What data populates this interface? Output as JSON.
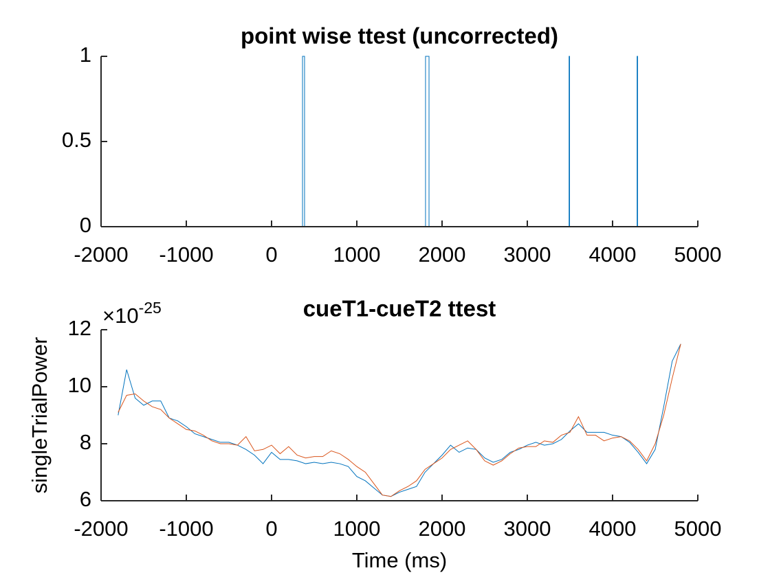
{
  "chart_data": [
    {
      "type": "line",
      "title": "point wise ttest (uncorrected)",
      "x": [
        -1800,
        363,
        363,
        387,
        387,
        1806,
        1806,
        1847,
        1847,
        3490,
        3490,
        3496,
        3496,
        4288,
        4288,
        4294,
        4294,
        4800
      ],
      "series": [
        {
          "color": "#0072BD",
          "values": [
            0,
            0,
            1,
            1,
            0,
            0,
            1,
            1,
            0,
            0,
            1,
            1,
            0,
            0,
            1,
            1,
            0,
            0
          ]
        }
      ],
      "xlim": [
        -2000,
        5000
      ],
      "xticks": [
        -2000,
        -1000,
        0,
        1000,
        2000,
        3000,
        4000,
        5000
      ],
      "ylim": [
        0,
        1
      ],
      "yticks": [
        0,
        0.5,
        1
      ]
    },
    {
      "type": "line",
      "title": "cueT1-cueT2 ttest",
      "ylabel": "singleTrialPower",
      "xlabel": "Time (ms)",
      "y_multiplier": {
        "base": "×10",
        "exponent": "-25"
      },
      "x": [
        -1800,
        -1700,
        -1600,
        -1500,
        -1400,
        -1300,
        -1200,
        -1100,
        -1000,
        -900,
        -800,
        -700,
        -600,
        -500,
        -400,
        -300,
        -200,
        -100,
        0,
        100,
        200,
        300,
        400,
        500,
        600,
        700,
        800,
        900,
        1000,
        1100,
        1200,
        1300,
        1400,
        1500,
        1600,
        1700,
        1800,
        1900,
        2000,
        2100,
        2200,
        2300,
        2400,
        2500,
        2600,
        2700,
        2800,
        2900,
        3000,
        3100,
        3200,
        3300,
        3400,
        3500,
        3600,
        3700,
        3800,
        3900,
        4000,
        4100,
        4200,
        4300,
        4400,
        4500,
        4600,
        4700,
        4800
      ],
      "series": [
        {
          "color": "#0072BD",
          "values": [
            9.0,
            10.6,
            9.6,
            9.35,
            9.5,
            9.5,
            8.9,
            8.8,
            8.6,
            8.35,
            8.25,
            8.15,
            8.05,
            8.05,
            7.95,
            7.8,
            7.6,
            7.3,
            7.7,
            7.45,
            7.45,
            7.4,
            7.3,
            7.35,
            7.3,
            7.35,
            7.3,
            7.2,
            6.85,
            6.7,
            6.45,
            6.2,
            6.15,
            6.3,
            6.4,
            6.5,
            7.0,
            7.3,
            7.6,
            7.95,
            7.7,
            7.85,
            7.8,
            7.5,
            7.35,
            7.45,
            7.7,
            7.8,
            7.95,
            8.05,
            7.95,
            8.0,
            8.15,
            8.45,
            8.7,
            8.4,
            8.4,
            8.4,
            8.3,
            8.25,
            8.05,
            7.7,
            7.3,
            7.8,
            9.3,
            10.9,
            11.5
          ]
        },
        {
          "color": "#D95319",
          "values": [
            9.1,
            9.7,
            9.75,
            9.5,
            9.3,
            9.2,
            8.9,
            8.7,
            8.5,
            8.45,
            8.3,
            8.1,
            8.0,
            8.0,
            7.95,
            8.25,
            7.75,
            7.8,
            7.95,
            7.65,
            7.9,
            7.6,
            7.5,
            7.55,
            7.55,
            7.75,
            7.65,
            7.45,
            7.2,
            7.0,
            6.6,
            6.2,
            6.15,
            6.35,
            6.5,
            6.7,
            7.1,
            7.3,
            7.5,
            7.8,
            7.95,
            8.1,
            7.8,
            7.4,
            7.25,
            7.4,
            7.65,
            7.85,
            7.9,
            7.9,
            8.1,
            8.05,
            8.3,
            8.4,
            8.95,
            8.3,
            8.3,
            8.1,
            8.2,
            8.25,
            8.1,
            7.8,
            7.4,
            8.0,
            9.0,
            10.3,
            11.5
          ]
        }
      ],
      "xlim": [
        -2000,
        5000
      ],
      "xticks": [
        -2000,
        -1000,
        0,
        1000,
        2000,
        3000,
        4000,
        5000
      ],
      "ylim": [
        6,
        12
      ],
      "yticks": [
        6,
        8,
        10,
        12
      ]
    }
  ]
}
